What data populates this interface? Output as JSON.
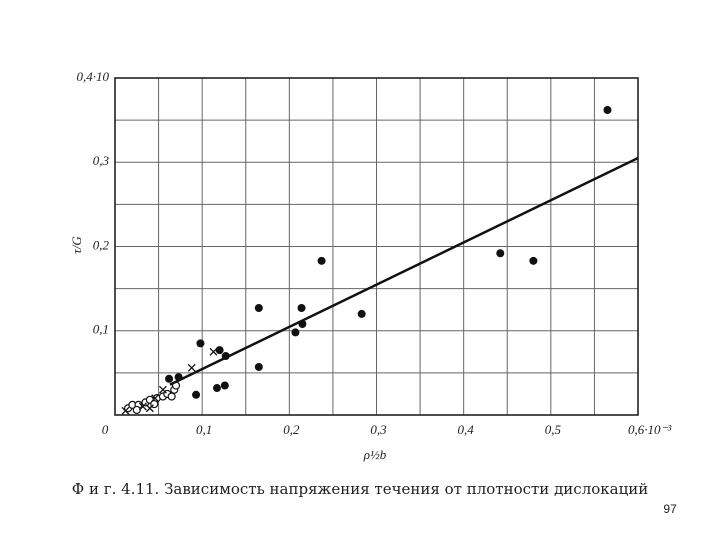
{
  "chart_data": {
    "type": "scatter",
    "xlabel": "ρ½b",
    "ylabel": "τ/G",
    "xlim": [
      0,
      0.6
    ],
    "ylim": [
      0,
      0.4
    ],
    "xticks": [
      {
        "value": 0,
        "label": "0"
      },
      {
        "value": 0.1,
        "label": "0,1"
      },
      {
        "value": 0.2,
        "label": "0,2"
      },
      {
        "value": 0.3,
        "label": "0,3"
      },
      {
        "value": 0.4,
        "label": "0,4"
      },
      {
        "value": 0.5,
        "label": "0,5"
      },
      {
        "value": 0.6,
        "label": "0,6·10⁻³"
      }
    ],
    "yticks": [
      {
        "value": 0.1,
        "label": "0,1"
      },
      {
        "value": 0.2,
        "label": "0,2"
      },
      {
        "value": 0.3,
        "label": "0,3"
      },
      {
        "value": 0.4,
        "label": "0,4·10"
      }
    ],
    "grid": true,
    "series": [
      {
        "marker": "filled",
        "color": "#111",
        "x": [
          0.565,
          0.442,
          0.48,
          0.237,
          0.283,
          0.165,
          0.214,
          0.215,
          0.207,
          0.098,
          0.12,
          0.127,
          0.165,
          0.062,
          0.073,
          0.117,
          0.126,
          0.093
        ],
        "values": [
          0.362,
          0.192,
          0.183,
          0.183,
          0.12,
          0.127,
          0.127,
          0.108,
          0.098,
          0.085,
          0.077,
          0.07,
          0.057,
          0.043,
          0.045,
          0.032,
          0.035,
          0.024
        ]
      },
      {
        "marker": "open",
        "color": "#111",
        "x": [
          0.015,
          0.02,
          0.027,
          0.035,
          0.04,
          0.048,
          0.055,
          0.06,
          0.068,
          0.07,
          0.065,
          0.045,
          0.025
        ],
        "values": [
          0.008,
          0.012,
          0.012,
          0.015,
          0.018,
          0.02,
          0.022,
          0.025,
          0.03,
          0.035,
          0.022,
          0.013,
          0.006
        ]
      },
      {
        "marker": "cross",
        "color": "#111",
        "x": [
          0.113,
          0.088,
          0.046,
          0.04,
          0.012,
          0.032,
          0.055
        ],
        "values": [
          0.075,
          0.056,
          0.02,
          0.008,
          0.005,
          0.01,
          0.03
        ]
      },
      {
        "marker": "line",
        "color": "#111",
        "x": [
          0.063,
          0.6
        ],
        "values": [
          0.036,
          0.305
        ]
      }
    ]
  },
  "caption": "Ф и г. 4.11. Зависимость напряжения течения от плотности дислокаций",
  "page_number": "97"
}
